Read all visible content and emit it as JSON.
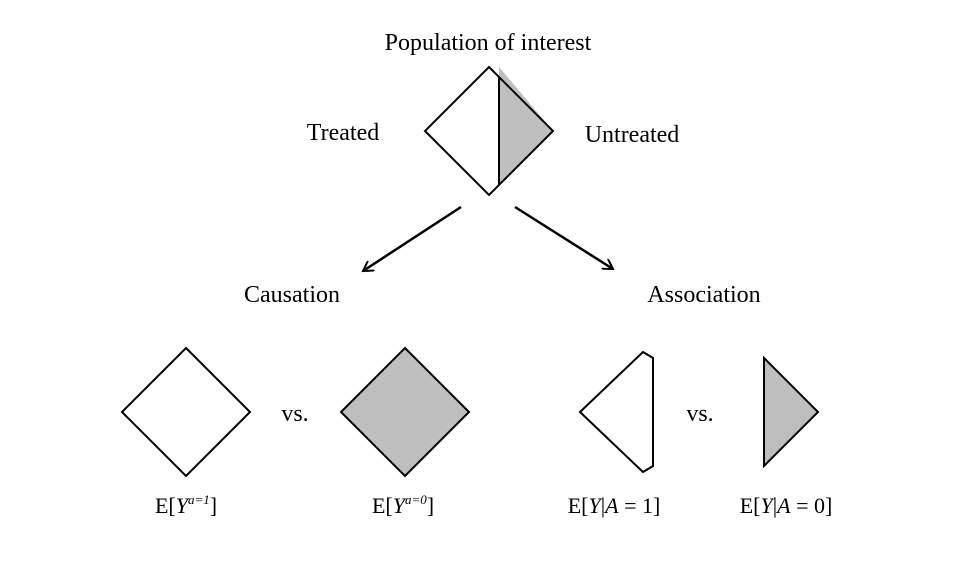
{
  "title": "Population of interest",
  "labels": {
    "treated": "Treated",
    "untreated": "Untreated",
    "causation": "Causation",
    "association": "Association",
    "vs1": "vs.",
    "vs2": "vs."
  },
  "formulas": {
    "causal_treated": {
      "pre": "E[",
      "var": "Y",
      "sup": "a=1",
      "post": "]"
    },
    "causal_untreated": {
      "pre": "E[",
      "var": "Y",
      "sup": "a=0",
      "post": "]"
    },
    "assoc_treated": {
      "pre": "E[",
      "var": "Y",
      "bar": "|",
      "cond": "A",
      "post": " = 1]"
    },
    "assoc_untreated": {
      "pre": "E[",
      "var": "Y",
      "bar": "|",
      "cond": "A",
      "post": " = 0]"
    }
  },
  "colors": {
    "stroke": "#000000",
    "shaded": "#bfbfbf",
    "unshaded": "#ffffff"
  }
}
